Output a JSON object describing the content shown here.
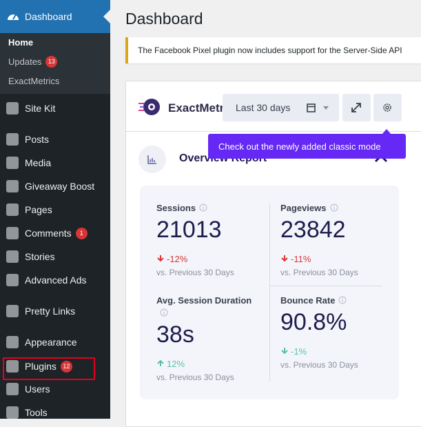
{
  "sidebar": {
    "active": {
      "label": "Dashboard"
    },
    "submenu": [
      {
        "label": "Home"
      },
      {
        "label": "Updates",
        "badge": "13"
      },
      {
        "label": "ExactMetrics"
      }
    ],
    "menu": [
      {
        "label": "Site Kit"
      },
      {
        "label": "Posts"
      },
      {
        "label": "Media"
      },
      {
        "label": "Giveaway Boost"
      },
      {
        "label": "Pages"
      },
      {
        "label": "Comments",
        "badge": "1"
      },
      {
        "label": "Stories"
      },
      {
        "label": "Advanced Ads"
      },
      {
        "label": "Pretty Links"
      },
      {
        "label": "Appearance"
      },
      {
        "label": "Plugins",
        "badge": "12"
      },
      {
        "label": "Users"
      },
      {
        "label": "Tools"
      }
    ]
  },
  "page": {
    "title": "Dashboard",
    "notice": "The Facebook Pixel plugin now includes support for the Server-Side API"
  },
  "widget": {
    "brand": "ExactMetrics",
    "date_range": "Last 30 days",
    "tooltip": "Check out the newly added classic mode",
    "section": "Overview Report",
    "stats": [
      {
        "label": "Sessions",
        "value": "21013",
        "change": "-12%",
        "trend": "down",
        "sentiment": "negative",
        "compare": "vs. Previous 30 Days"
      },
      {
        "label": "Pageviews",
        "value": "23842",
        "change": "-11%",
        "trend": "down",
        "sentiment": "negative",
        "compare": "vs. Previous 30 Days"
      },
      {
        "label": "Avg. Session Duration",
        "value": "38s",
        "change": "12%",
        "trend": "up",
        "sentiment": "positive",
        "compare": "vs. Previous 30 Days"
      },
      {
        "label": "Bounce Rate",
        "value": "90.8%",
        "change": "-1%",
        "trend": "down",
        "sentiment": "positive",
        "compare": "vs. Previous 30 Days"
      }
    ]
  }
}
